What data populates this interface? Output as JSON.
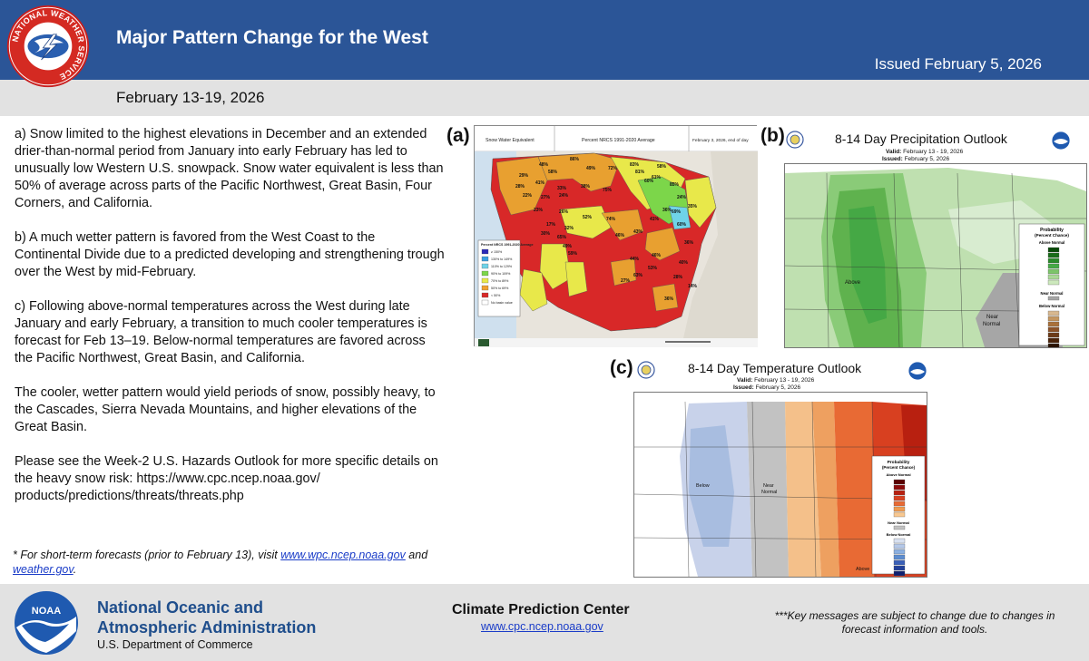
{
  "header": {
    "title": "Major Pattern Change for the West",
    "issued": "Issued February 5, 2026",
    "period": "February 13-19, 2026",
    "logo_text": "NATIONAL WEATHER SERVICE"
  },
  "messages": [
    "a) Snow limited to the highest elevations in December and an extended drier-than-normal period from January into early February has led to unusually low Western U.S. snowpack. Snow water equivalent is less than 50% of average across parts of the Pacific Northwest, Great Basin, Four Corners, and California.",
    "b) A much wetter pattern is favored from the West Coast to the Continental Divide due to a predicted developing and strengthening trough over the West by mid-February.",
    "c) Following above-normal temperatures across the West during late January and early February, a transition to much cooler temperatures is forecast for Feb 13–19. Below-normal temperatures are favored across the Pacific Northwest, Great Basin, and California.",
    "The cooler, wetter pattern would yield periods of snow, possibly heavy, to the Cascades, Sierra Nevada Mountains, and higher elevations of the Great Basin.",
    "Please see the Week-2 U.S. Hazards Outlook for more specific details on the heavy snow risk: https://www.cpc.ncep.noaa.gov/ products/predictions/threats/threats.php"
  ],
  "footnote": {
    "prefix": " * For short-term forecasts (prior to February 13), visit ",
    "link1": "www.wpc.ncep.noaa.gov",
    "mid": " and ",
    "link2": "weather.gov",
    "suffix": "."
  },
  "panel_a": {
    "label": "(a)",
    "hdr_left": "Snow Water Equivalent",
    "hdr_mid": "Percent NRCS 1991-2020 Average",
    "hdr_right": "February 3, 2026, end of day",
    "legend_title": "Percent NRCS 1991-2020 Average",
    "legend": [
      "≥ 150%",
      "130% to 149%",
      "110% to 129%",
      "90% to 109%",
      "70% to 89%",
      "50% to 69%",
      "< 50%",
      "No basin value"
    ],
    "legend_colors": [
      "#2a2ab8",
      "#3a9fe0",
      "#6fd3e8",
      "#7cd64a",
      "#e8e84a",
      "#f0a030",
      "#d82828",
      "#ffffff"
    ],
    "values": [
      "86%",
      "48%",
      "58%",
      "29%",
      "49%",
      "72%",
      "83%",
      "58%",
      "81%",
      "61%",
      "60%",
      "41%",
      "28%",
      "33%",
      "38%",
      "85%",
      "75%",
      "22%",
      "27%",
      "24%",
      "24%",
      "35%",
      "36%",
      "69%",
      "23%",
      "26%",
      "52%",
      "74%",
      "41%",
      "17%",
      "32%",
      "60%",
      "30%",
      "65%",
      "46%",
      "43%",
      "49%",
      "59%",
      "36%",
      "44%",
      "46%",
      "53%",
      "63%",
      "27%",
      "40%",
      "28%",
      "14%",
      "36%"
    ]
  },
  "panel_b": {
    "label": "(b)",
    "title": "8-14 Day Precipitation Outlook",
    "valid_label": "Valid:",
    "valid": "February 13 - 19, 2026",
    "issued_label": "Issued:",
    "issued": "February 5, 2026",
    "above_label": "Above",
    "near_label": "Near\nNormal",
    "legend_title": "Probability\n(Percent Chance)",
    "legend_above": "Above Normal",
    "legend_near": "Near Normal",
    "legend_below": "Below Normal",
    "above_colors": [
      "#0a4a0a",
      "#186c18",
      "#2a8a2a",
      "#45a845",
      "#7cc46a",
      "#a9d896",
      "#cce8bc"
    ],
    "below_colors": [
      "#d8b890",
      "#c49660",
      "#a8703a",
      "#8c5228",
      "#6c3a18",
      "#4a2208",
      "#2a1200"
    ]
  },
  "panel_c": {
    "label": "(c)",
    "title": "8-14 Day Temperature Outlook",
    "valid_label": "Valid:",
    "valid": "February 13 - 19, 2026",
    "issued_label": "Issued:",
    "issued": "February 5, 2026",
    "below_label": "Below",
    "near_label": "Near\nNormal",
    "above_label": "Above",
    "legend_title": "Probability\n(Percent Chance)",
    "legend_above": "Above Normal",
    "legend_near": "Near Normal",
    "legend_below": "Below Normal",
    "above_colors": [
      "#5a0000",
      "#8c0a0a",
      "#b82010",
      "#d84020",
      "#e86a34",
      "#f09a50",
      "#f8c890"
    ],
    "below_colors": [
      "#d8e0f0",
      "#b4c8e8",
      "#8cb0e0",
      "#5c8cd0",
      "#3a60b8",
      "#22409a",
      "#0e2070"
    ]
  },
  "bottom": {
    "noaa_name_line1": "National Oceanic and",
    "noaa_name_line2": "Atmospheric Administration",
    "noaa_dept": "U.S. Department of Commerce",
    "noaa_logo_text": "NOAA",
    "cpc_name": "Climate Prediction Center",
    "cpc_url": "www.cpc.ncep.noaa.gov",
    "disclaimer": "***Key messages are subject to change due to changes in forecast information and tools."
  },
  "colors": {
    "header_blue": "#2b5597",
    "band_gray": "#e2e2e2",
    "noaa_blue": "#1f4e8c",
    "link_blue": "#1a3cc8"
  }
}
